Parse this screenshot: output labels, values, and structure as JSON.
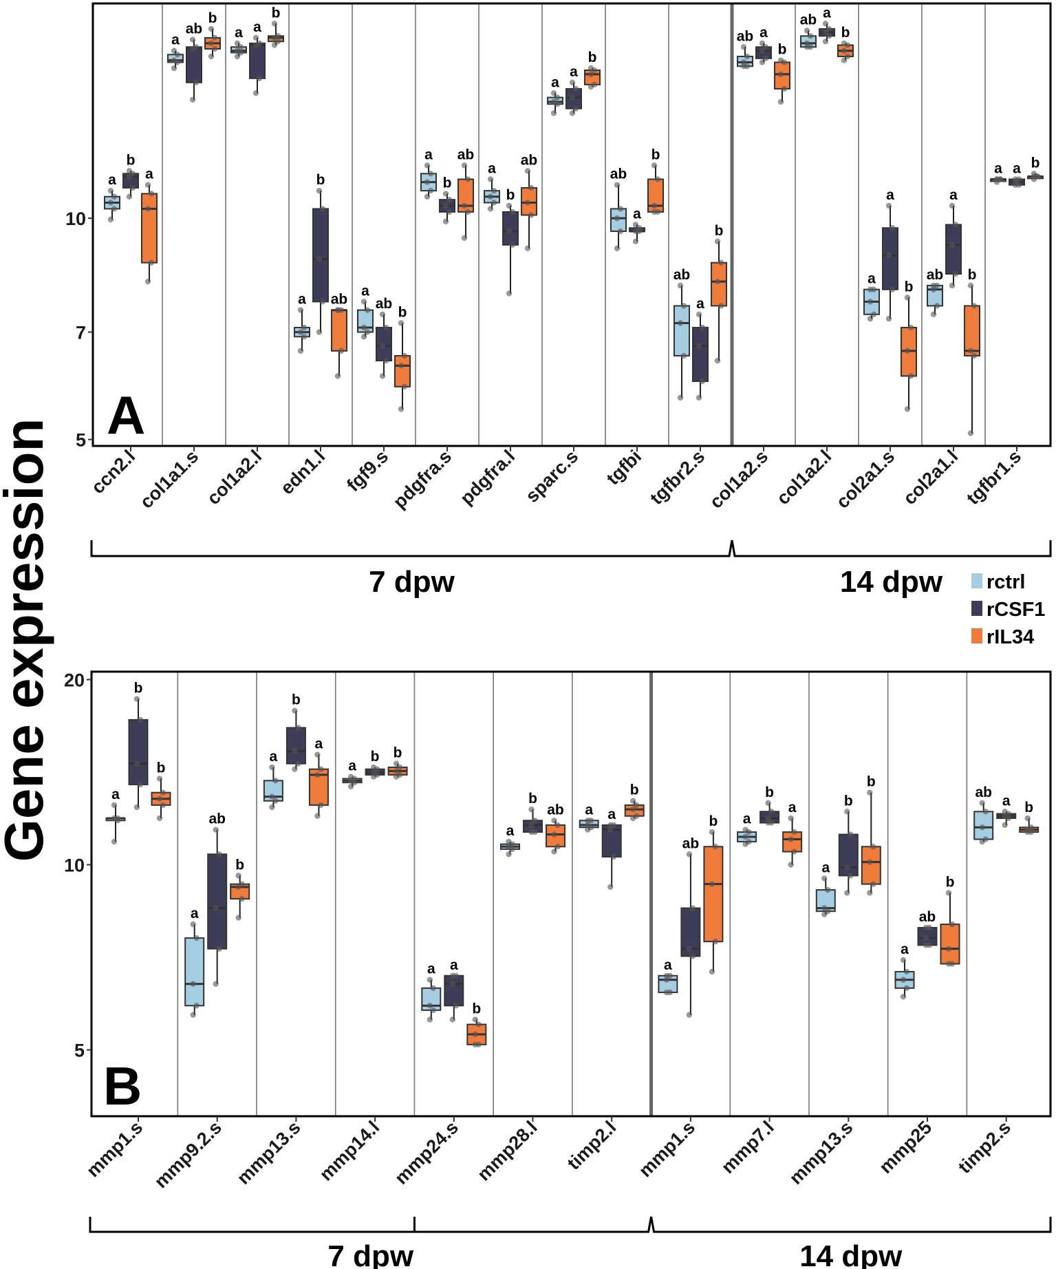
{
  "figure": {
    "y_axis_title": "Gene expression",
    "legend": [
      {
        "label": "rctrl",
        "color": "#a6cee3"
      },
      {
        "label": "rCSF1",
        "color": "#3e3d58"
      },
      {
        "label": "rIL34",
        "color": "#f07c3c"
      }
    ]
  },
  "chart_data": [
    {
      "type": "box",
      "panel": "A",
      "title": "",
      "xlabel": "",
      "ylabel": "Gene expression",
      "yscale": "log",
      "ylim": [
        4.9,
        19.6
      ],
      "yticks": [
        5,
        7,
        10
      ],
      "ytick_labels": [
        "5",
        "7",
        "10"
      ],
      "grid": false,
      "legend_position": "right",
      "box_stats_order": [
        "lower_whisker",
        "q1",
        "median",
        "q3",
        "upper_whisker"
      ],
      "series_names": [
        "rctrl",
        "rCSF1",
        "rIL34"
      ],
      "group_divider_after_index": 9,
      "groups": [
        {
          "label": "7 dpw",
          "from": 0,
          "to": 9
        },
        {
          "label": "14 dpw",
          "from": 10,
          "to": 14
        }
      ],
      "categories": [
        {
          "label": "ccn2.l",
          "boxes": [
            [
              9.96,
              10.3,
              10.5,
              10.7,
              10.9
            ],
            [
              10.7,
              11.0,
              11.4,
              11.5,
              11.6
            ],
            [
              8.2,
              8.7,
              10.3,
              10.8,
              11.1
            ]
          ],
          "sig": [
            "a",
            "b",
            "a"
          ]
        },
        {
          "label": "col1a1.s",
          "boxes": [
            [
              16.0,
              16.3,
              16.4,
              16.7,
              16.9
            ],
            [
              14.5,
              15.3,
              17.0,
              17.1,
              17.5
            ],
            [
              16.6,
              17.0,
              17.3,
              17.6,
              18.1
            ]
          ],
          "sig": [
            "a",
            "ab",
            "b"
          ]
        },
        {
          "label": "col1a2.l",
          "boxes": [
            [
              16.6,
              16.8,
              16.9,
              17.1,
              17.3
            ],
            [
              14.8,
              15.5,
              17.2,
              17.3,
              17.6
            ],
            [
              17.2,
              17.4,
              17.6,
              17.7,
              18.4
            ]
          ],
          "sig": [
            "a",
            "a",
            "b"
          ]
        },
        {
          "label": "edn1.l",
          "boxes": [
            [
              6.6,
              6.9,
              7.0,
              7.1,
              7.5
            ],
            [
              7.0,
              7.7,
              8.8,
              10.3,
              10.9
            ],
            [
              6.1,
              6.6,
              7.5,
              7.5,
              7.5
            ]
          ],
          "sig": [
            "a",
            "b",
            "ab"
          ]
        },
        {
          "label": "fgf9.s",
          "boxes": [
            [
              6.9,
              7.0,
              7.1,
              7.5,
              7.7
            ],
            [
              6.1,
              6.4,
              6.7,
              7.1,
              7.4
            ],
            [
              5.5,
              5.9,
              6.3,
              6.5,
              7.2
            ]
          ],
          "sig": [
            "a",
            "ab",
            "b"
          ]
        },
        {
          "label": "pdgfra.s",
          "boxes": [
            [
              10.7,
              10.9,
              11.2,
              11.5,
              11.8
            ],
            [
              9.9,
              10.2,
              10.4,
              10.6,
              10.8
            ],
            [
              9.4,
              10.2,
              10.4,
              11.3,
              11.8
            ]
          ],
          "sig": [
            "a",
            "b",
            "ab"
          ]
        },
        {
          "label": "pdgfra.l",
          "boxes": [
            [
              10.3,
              10.5,
              10.7,
              10.9,
              11.3
            ],
            [
              7.9,
              9.2,
              9.6,
              10.2,
              10.4
            ],
            [
              9.1,
              10.1,
              10.5,
              11.0,
              11.6
            ]
          ],
          "sig": [
            "a",
            "b",
            "ab"
          ]
        },
        {
          "label": "sparc.s",
          "boxes": [
            [
              13.9,
              14.3,
              14.4,
              14.6,
              14.8
            ],
            [
              13.9,
              14.1,
              14.6,
              15.0,
              15.3
            ],
            [
              15.1,
              15.2,
              15.7,
              15.9,
              16.0
            ]
          ],
          "sig": [
            "a",
            "a",
            "b"
          ]
        },
        {
          "label": "tgfbi",
          "boxes": [
            [
              9.1,
              9.6,
              10.0,
              10.3,
              11.1
            ],
            [
              9.3,
              9.6,
              9.6,
              9.7,
              9.8
            ],
            [
              10.2,
              10.2,
              10.4,
              11.3,
              11.8
            ]
          ],
          "sig": [
            "ab",
            "a",
            "b"
          ]
        },
        {
          "label": "tgfbr2.s",
          "boxes": [
            [
              5.7,
              6.5,
              7.2,
              7.6,
              8.1
            ],
            [
              5.7,
              6.0,
              6.7,
              7.1,
              7.4
            ],
            [
              6.4,
              7.6,
              8.2,
              8.7,
              9.3
            ]
          ],
          "sig": [
            "ab",
            "a",
            "b"
          ]
        },
        {
          "label": "col1a2.s",
          "boxes": [
            [
              16.1,
              16.1,
              16.3,
              16.6,
              17.1
            ],
            [
              16.3,
              16.5,
              16.9,
              17.1,
              17.3
            ],
            [
              14.4,
              15.0,
              15.7,
              16.3,
              16.4
            ]
          ],
          "sig": [
            "ab",
            "a",
            "b"
          ]
        },
        {
          "label": "col1a2.l",
          "boxes": [
            [
              17.1,
              17.1,
              17.3,
              17.7,
              18.0
            ],
            [
              17.4,
              17.7,
              17.9,
              18.1,
              18.4
            ],
            [
              16.4,
              16.6,
              16.9,
              17.2,
              17.3
            ]
          ],
          "sig": [
            "ab",
            "a",
            "b"
          ]
        },
        {
          "label": "col2a1.s",
          "boxes": [
            [
              7.3,
              7.4,
              7.7,
              8.0,
              8.0
            ],
            [
              7.3,
              8.0,
              8.9,
              9.7,
              10.4
            ],
            [
              5.5,
              6.1,
              6.6,
              7.1,
              7.8
            ]
          ],
          "sig": [
            "a",
            "a",
            "b"
          ]
        },
        {
          "label": "col2a1.l",
          "boxes": [
            [
              7.4,
              7.6,
              8.0,
              8.1,
              8.1
            ],
            [
              8.1,
              8.4,
              9.2,
              9.8,
              10.4
            ],
            [
              5.1,
              6.5,
              6.6,
              7.6,
              8.1
            ]
          ],
          "sig": [
            "ab",
            "a",
            "b"
          ]
        },
        {
          "label": "tgfbr1.s",
          "boxes": [
            [
              11.2,
              11.3,
              11.3,
              11.3,
              11.3
            ],
            [
              11.1,
              11.1,
              11.2,
              11.3,
              11.3
            ],
            [
              11.3,
              11.4,
              11.4,
              11.4,
              11.5
            ]
          ],
          "sig": [
            "a",
            "a",
            "b"
          ]
        }
      ]
    },
    {
      "type": "box",
      "panel": "B",
      "title": "",
      "xlabel": "",
      "ylabel": "Gene expression",
      "yscale": "log",
      "ylim": [
        3.9,
        20.6
      ],
      "yticks": [
        5,
        10,
        20
      ],
      "ytick_labels": [
        "5",
        "10",
        "20"
      ],
      "grid": false,
      "legend_position": "right",
      "box_stats_order": [
        "lower_whisker",
        "q1",
        "median",
        "q3",
        "upper_whisker"
      ],
      "series_names": [
        "rctrl",
        "rCSF1",
        "rIL34"
      ],
      "group_divider_after_index": 6,
      "groups": [
        {
          "label": "7 dpw",
          "from": 0,
          "to": 6
        },
        {
          "label": "14 dpw",
          "from": 7,
          "to": 11
        }
      ],
      "categories": [
        {
          "label": "mmp1.s",
          "boxes": [
            [
              10.9,
              11.8,
              11.9,
              11.9,
              12.5
            ],
            [
              12.4,
              13.5,
              14.6,
              17.2,
              18.6
            ],
            [
              11.9,
              12.5,
              12.8,
              13.1,
              13.8
            ]
          ],
          "sig": [
            "a",
            "b",
            "b"
          ]
        },
        {
          "label": "mmp9.2.s",
          "boxes": [
            [
              5.7,
              5.9,
              6.4,
              7.6,
              8.0
            ],
            [
              6.4,
              7.3,
              8.5,
              10.4,
              11.4
            ],
            [
              8.2,
              8.8,
              9.2,
              9.3,
              9.6
            ]
          ],
          "sig": [
            "a",
            "ab",
            "b"
          ]
        },
        {
          "label": "mmp13.s",
          "boxes": [
            [
              12.4,
              12.7,
              12.9,
              13.7,
              14.4
            ],
            [
              14.3,
              14.6,
              15.3,
              16.7,
              17.8
            ],
            [
              12.0,
              12.5,
              14.0,
              14.3,
              15.1
            ]
          ],
          "sig": [
            "a",
            "b",
            "a"
          ]
        },
        {
          "label": "mmp14.l",
          "boxes": [
            [
              13.4,
              13.6,
              13.7,
              13.8,
              13.9
            ],
            [
              13.9,
              14.0,
              14.1,
              14.3,
              14.4
            ],
            [
              13.9,
              14.0,
              14.2,
              14.4,
              14.6
            ]
          ],
          "sig": [
            "a",
            "b",
            "b"
          ]
        },
        {
          "label": "mmp24.s",
          "boxes": [
            [
              5.6,
              5.8,
              5.9,
              6.3,
              6.5
            ],
            [
              5.6,
              5.9,
              6.4,
              6.6,
              6.6
            ],
            [
              5.1,
              5.1,
              5.3,
              5.5,
              5.6
            ]
          ],
          "sig": [
            "a",
            "a",
            "b"
          ]
        },
        {
          "label": "mmp28.l",
          "boxes": [
            [
              10.4,
              10.6,
              10.7,
              10.8,
              10.9
            ],
            [
              11.3,
              11.3,
              11.6,
              11.8,
              12.3
            ],
            [
              10.5,
              10.7,
              11.2,
              11.6,
              11.8
            ]
          ],
          "sig": [
            "a",
            "b",
            "ab"
          ]
        },
        {
          "label": "timp2.l",
          "boxes": [
            [
              11.4,
              11.5,
              11.6,
              11.8,
              11.8
            ],
            [
              9.2,
              10.3,
              11.4,
              11.6,
              11.6
            ],
            [
              11.9,
              12.0,
              12.3,
              12.5,
              12.7
            ]
          ],
          "sig": [
            "a",
            "a",
            "b"
          ]
        },
        {
          "label": "mmp1.s",
          "boxes": [
            [
              6.2,
              6.2,
              6.5,
              6.6,
              6.6
            ],
            [
              5.7,
              7.1,
              7.3,
              8.5,
              10.4
            ],
            [
              6.7,
              7.5,
              9.3,
              10.7,
              11.3
            ]
          ],
          "sig": [
            "a",
            "ab",
            "b"
          ]
        },
        {
          "label": "mmp7.l",
          "boxes": [
            [
              10.8,
              10.9,
              11.1,
              11.3,
              11.4
            ],
            [
              11.7,
              11.7,
              11.9,
              12.2,
              12.6
            ],
            [
              10.0,
              10.5,
              11.0,
              11.3,
              11.9
            ]
          ],
          "sig": [
            "a",
            "b",
            "a"
          ]
        },
        {
          "label": "mmp13.s",
          "boxes": [
            [
              8.3,
              8.4,
              8.5,
              9.1,
              9.5
            ],
            [
              9.0,
              9.6,
              9.9,
              11.2,
              12.2
            ],
            [
              9.0,
              9.3,
              10.1,
              10.7,
              13.1
            ]
          ],
          "sig": [
            "a",
            "b",
            "b"
          ]
        },
        {
          "label": "mmp25",
          "boxes": [
            [
              6.1,
              6.3,
              6.5,
              6.7,
              7.0
            ],
            [
              7.4,
              7.4,
              7.6,
              7.9,
              7.9
            ],
            [
              6.9,
              6.9,
              7.3,
              8.0,
              9.0
            ]
          ],
          "sig": [
            "a",
            "ab",
            "b"
          ]
        },
        {
          "label": "timp2.s",
          "boxes": [
            [
              10.9,
              11.0,
              11.5,
              12.2,
              12.6
            ],
            [
              11.6,
              11.9,
              12.0,
              12.1,
              12.2
            ],
            [
              11.3,
              11.3,
              11.4,
              11.5,
              11.9
            ]
          ],
          "sig": [
            "ab",
            "a",
            "b"
          ]
        }
      ]
    }
  ]
}
